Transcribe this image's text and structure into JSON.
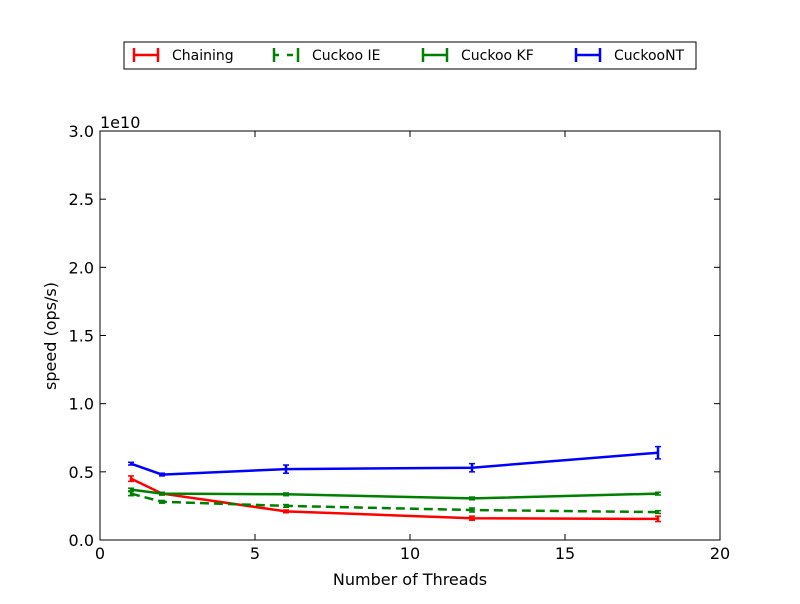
{
  "chart_data": {
    "type": "line",
    "title": "",
    "xlabel": "Number of Threads",
    "ylabel": "speed (ops/s)",
    "y_offset_label": "1e10",
    "xlim": [
      0,
      20
    ],
    "ylim": [
      0,
      3.0
    ],
    "y_scale_factor": 10000000000.0,
    "xticks": [
      0,
      5,
      10,
      15,
      20
    ],
    "xtick_labels": [
      "0",
      "5",
      "10",
      "15",
      "20"
    ],
    "yticks": [
      0,
      0.5,
      1.0,
      1.5,
      2.0,
      2.5,
      3.0
    ],
    "ytick_labels": [
      "0.0",
      "0.5",
      "1.0",
      "1.5",
      "2.0",
      "2.5",
      "3.0"
    ],
    "grid": false,
    "legend_position": "top, above plot",
    "series": [
      {
        "name": "Chaining",
        "color": "#ff0000",
        "dashed": false,
        "x": [
          1,
          2,
          6,
          12,
          18
        ],
        "y": [
          0.45,
          0.34,
          0.21,
          0.16,
          0.155
        ],
        "err": [
          0.02,
          0.01,
          0.01,
          0.015,
          0.02
        ]
      },
      {
        "name": "Cuckoo IE",
        "color": "#008000",
        "dashed": true,
        "x": [
          1,
          2,
          6,
          12,
          18
        ],
        "y": [
          0.34,
          0.28,
          0.25,
          0.22,
          0.205
        ],
        "err": [
          0.015,
          0.01,
          0.01,
          0.015,
          0.01
        ]
      },
      {
        "name": "Cuckoo KF",
        "color": "#008000",
        "dashed": false,
        "x": [
          1,
          2,
          6,
          12,
          18
        ],
        "y": [
          0.37,
          0.34,
          0.335,
          0.305,
          0.34
        ],
        "err": [
          0.01,
          0.01,
          0.01,
          0.01,
          0.01
        ]
      },
      {
        "name": "CuckooNT",
        "color": "#0000ff",
        "dashed": false,
        "x": [
          1,
          2,
          6,
          12,
          18
        ],
        "y": [
          0.56,
          0.48,
          0.52,
          0.53,
          0.64
        ],
        "err": [
          0.01,
          0.01,
          0.03,
          0.03,
          0.045
        ]
      }
    ]
  }
}
